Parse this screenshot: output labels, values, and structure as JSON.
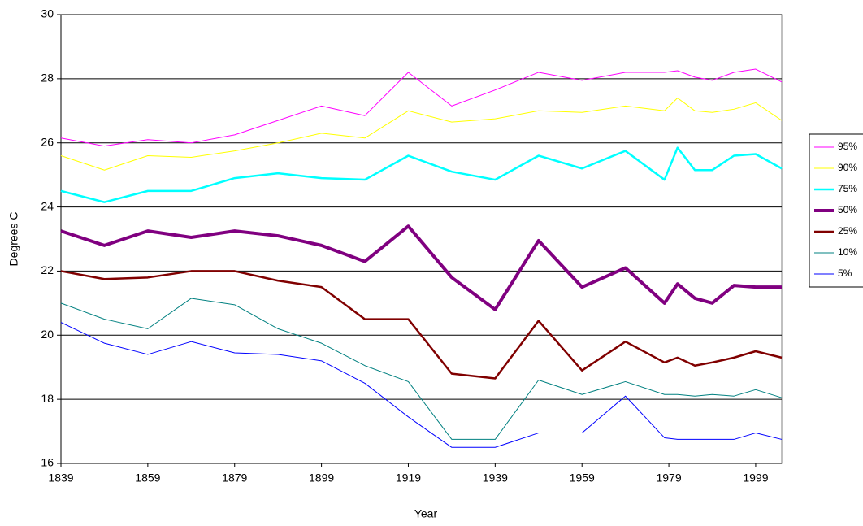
{
  "chart_data": {
    "type": "line",
    "x_label": "Year",
    "y_label": "Degrees C",
    "x": [
      1839,
      1849,
      1859,
      1869,
      1879,
      1889,
      1899,
      1909,
      1919,
      1929,
      1939,
      1949,
      1959,
      1969,
      1978,
      1981,
      1985,
      1989,
      1994,
      1999,
      2005
    ],
    "series": [
      {
        "name": "95%",
        "color": "#ff00ff",
        "width": 1,
        "values": [
          26.15,
          25.9,
          26.1,
          26.0,
          26.25,
          26.7,
          27.15,
          26.85,
          28.2,
          27.15,
          27.65,
          28.2,
          27.95,
          28.2,
          28.2,
          28.25,
          28.05,
          27.95,
          28.2,
          28.3,
          27.9
        ]
      },
      {
        "name": "90%",
        "color": "#ffff00",
        "width": 1,
        "values": [
          25.6,
          25.15,
          25.6,
          25.55,
          25.75,
          26.0,
          26.3,
          26.15,
          27.0,
          26.65,
          26.75,
          27.0,
          26.95,
          27.15,
          27.0,
          27.4,
          27.0,
          26.95,
          27.05,
          27.25,
          26.7
        ]
      },
      {
        "name": "75%",
        "color": "#00ffff",
        "width": 2.5,
        "values": [
          24.5,
          24.15,
          24.5,
          24.5,
          24.9,
          25.05,
          24.9,
          24.85,
          25.6,
          25.1,
          24.85,
          25.6,
          25.2,
          25.75,
          24.85,
          25.85,
          25.15,
          25.15,
          25.6,
          25.65,
          25.2
        ]
      },
      {
        "name": "50%",
        "color": "#800080",
        "width": 4,
        "values": [
          23.25,
          22.8,
          23.25,
          23.05,
          23.25,
          23.1,
          22.8,
          22.3,
          23.4,
          21.8,
          20.8,
          22.95,
          21.5,
          22.1,
          21.0,
          21.6,
          21.15,
          21.0,
          21.55,
          21.5,
          21.5
        ]
      },
      {
        "name": "25%",
        "color": "#800000",
        "width": 2.5,
        "values": [
          22.0,
          21.75,
          21.8,
          22.0,
          22.0,
          21.7,
          21.5,
          20.5,
          20.5,
          18.8,
          18.65,
          20.45,
          18.9,
          19.8,
          19.15,
          19.3,
          19.05,
          19.15,
          19.3,
          19.5,
          19.3
        ]
      },
      {
        "name": "10%",
        "color": "#008080",
        "width": 1,
        "values": [
          21.0,
          20.5,
          20.2,
          21.15,
          20.95,
          20.2,
          19.75,
          19.05,
          18.55,
          16.75,
          16.75,
          18.6,
          18.15,
          18.55,
          18.15,
          18.15,
          18.1,
          18.15,
          18.1,
          18.3,
          18.05
        ]
      },
      {
        "name": "5%",
        "color": "#0000ff",
        "width": 1,
        "values": [
          20.4,
          19.75,
          19.4,
          19.8,
          19.45,
          19.4,
          19.2,
          18.5,
          17.45,
          16.5,
          16.5,
          16.95,
          16.95,
          18.1,
          16.8,
          16.75,
          16.75,
          16.75,
          16.75,
          16.95,
          16.75
        ]
      }
    ],
    "xlim": [
      1839,
      2005
    ],
    "xticks": [
      1839,
      1859,
      1879,
      1899,
      1919,
      1939,
      1959,
      1979,
      1999
    ],
    "ylim": [
      16,
      30
    ],
    "yticks": [
      16,
      18,
      20,
      22,
      24,
      26,
      28,
      30
    ],
    "grid": true,
    "legend": "right"
  }
}
